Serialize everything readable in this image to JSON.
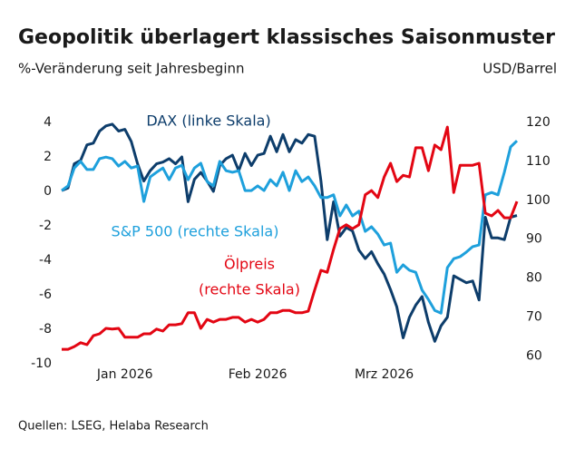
{
  "chart_data": {
    "type": "line",
    "title": "Geopolitik überlagert klassisches Saisonmuster",
    "y_label": "%-Veränderung seit Jahresbeginn",
    "y2_label": "USD/Barrel",
    "source": "Quellen: LSEG, Helaba Research",
    "xlim": [
      0,
      72
    ],
    "xticks": [
      {
        "value": 10,
        "label": "Jan 2026"
      },
      {
        "value": 31,
        "label": "Feb 2026"
      },
      {
        "value": 51,
        "label": "Mrz 2026"
      }
    ],
    "ylim": [
      -10,
      4
    ],
    "yticks": [
      4,
      2,
      0,
      -2,
      -4,
      -6,
      -8,
      -10
    ],
    "y2lim": [
      58,
      120
    ],
    "y2ticks": [
      120,
      110,
      100,
      90,
      80,
      70,
      60
    ],
    "grid": false,
    "series": [
      {
        "name": "DAX (linke Skala)",
        "color": "#0d3d6b",
        "axis": "y",
        "values": [
          0.05,
          0.2,
          1.6,
          1.8,
          2.7,
          2.8,
          3.5,
          3.8,
          3.9,
          3.5,
          3.6,
          2.9,
          1.6,
          0.6,
          1.2,
          1.6,
          1.7,
          1.9,
          1.6,
          2.0,
          -0.6,
          0.7,
          1.1,
          0.6,
          0,
          1.5,
          1.9,
          2.1,
          1.2,
          2.2,
          1.5,
          2.1,
          2.2,
          3.2,
          2.3,
          3.3,
          2.3,
          3.0,
          2.8,
          3.3,
          3.2,
          0.6,
          -2.8,
          -0.6,
          -2.6,
          -2.1,
          -2.3,
          -3.4,
          -3.9,
          -3.5,
          -4.2,
          -4.8,
          -5.7,
          -6.7,
          -8.5,
          -7.3,
          -6.6,
          -6.1,
          -7.6,
          -8.7,
          -7.8,
          -7.3,
          -4.9,
          -5.1,
          -5.3,
          -5.2,
          -6.3,
          -1.5,
          -2.7,
          -2.7,
          -2.8,
          -1.5,
          -1.4
        ]
      },
      {
        "name": "S&P 500 (rechte Skala)",
        "color": "#1ea0dc",
        "axis": "y2",
        "values": [
          102.5,
          103.7,
          108.3,
          110,
          107.9,
          107.9,
          110.7,
          111.1,
          110.7,
          108.8,
          110,
          108.3,
          108.8,
          99.7,
          106,
          107.2,
          108.3,
          105.3,
          108.3,
          109,
          105.3,
          108.3,
          109.5,
          104.8,
          103.7,
          110,
          107.6,
          107.2,
          107.6,
          102.5,
          102.5,
          103.7,
          102.5,
          105.3,
          103.7,
          107.2,
          102.5,
          107.6,
          104.8,
          106.0,
          103.7,
          100.7,
          100.7,
          101.4,
          96,
          98.8,
          96,
          97.2,
          92,
          93.2,
          91.3,
          88.5,
          89,
          81.5,
          83.4,
          82,
          81.5,
          76.9,
          74.5,
          71.7,
          71,
          82.7,
          85,
          85.5,
          86.7,
          88.1,
          88.5,
          101.4,
          102,
          101.4,
          107.2,
          113.7,
          115.3
        ]
      },
      {
        "name": [
          "Ölpreis",
          "(rechte Skala)"
        ],
        "color": "#e30613",
        "axis": "y2",
        "values": [
          61.7,
          61.7,
          62.4,
          63.4,
          62.9,
          65.2,
          65.7,
          67.1,
          66.9,
          67.1,
          64.8,
          64.8,
          64.8,
          65.7,
          65.7,
          66.9,
          66.4,
          68,
          68,
          68.3,
          71.1,
          71.1,
          67.1,
          69.4,
          68.7,
          69.4,
          69.4,
          69.9,
          69.9,
          68.7,
          69.4,
          68.7,
          69.4,
          71.1,
          71.1,
          71.7,
          71.7,
          71.1,
          71.1,
          71.5,
          76.9,
          82,
          81.5,
          87.4,
          92.7,
          93.7,
          92.7,
          93.7,
          101.4,
          102.5,
          100.7,
          106,
          109.5,
          104.8,
          106.4,
          106,
          113.5,
          113.5,
          107.6,
          114.2,
          113,
          118.8,
          102,
          109,
          109,
          109,
          109.5,
          96.7,
          96,
          97.4,
          95.5,
          95.5,
          99.7
        ]
      }
    ]
  }
}
